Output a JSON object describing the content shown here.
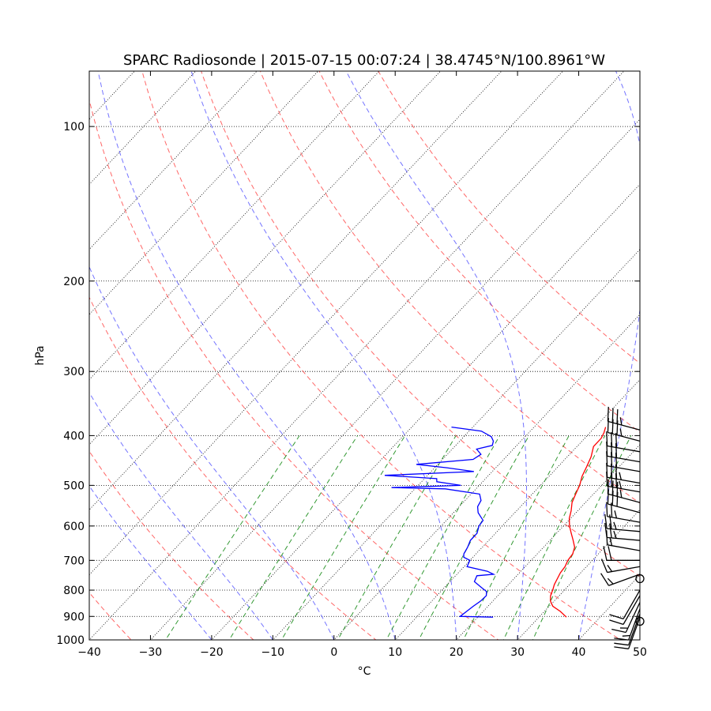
{
  "chart_data": {
    "type": "skew-t",
    "title": "SPARC Radiosonde | 2015-07-15 00:07:24 | 38.4745°N/100.8961°W",
    "xlabel": "°C",
    "ylabel": "hPa",
    "xlim": [
      -40,
      50
    ],
    "ylim": [
      1000,
      78
    ],
    "x_ticks": [
      -40,
      -30,
      -20,
      -10,
      0,
      10,
      20,
      30,
      40,
      50
    ],
    "x_tick_labels": [
      "−40",
      "−30",
      "−20",
      "−10",
      "0",
      "10",
      "20",
      "30",
      "40",
      "50"
    ],
    "y_ticks": [
      100,
      200,
      300,
      400,
      500,
      600,
      700,
      800,
      900,
      1000
    ],
    "y_tick_labels": [
      "100",
      "200",
      "300",
      "400",
      "500",
      "600",
      "700",
      "800",
      "900",
      "1000"
    ],
    "temperature": {
      "name": "Temperature",
      "color": "#ff0000",
      "points": [
        [
          903,
          34.5
        ],
        [
          880,
          32.6
        ],
        [
          860,
          30.6
        ],
        [
          840,
          29.4
        ],
        [
          820,
          28.6
        ],
        [
          800,
          28.1
        ],
        [
          780,
          27.5
        ],
        [
          760,
          27.1
        ],
        [
          740,
          26.7
        ],
        [
          720,
          26.5
        ],
        [
          700,
          26.0
        ],
        [
          680,
          25.8
        ],
        [
          660,
          25.1
        ],
        [
          640,
          23.8
        ],
        [
          620,
          22.4
        ],
        [
          600,
          21.0
        ],
        [
          580,
          19.8
        ],
        [
          560,
          18.9
        ],
        [
          540,
          17.8
        ],
        [
          520,
          17.1
        ],
        [
          500,
          16.4
        ],
        [
          480,
          15.4
        ],
        [
          460,
          14.7
        ],
        [
          440,
          13.9
        ],
        [
          420,
          12.7
        ],
        [
          405,
          12.7
        ],
        [
          395,
          12.3
        ],
        [
          385,
          11.7
        ]
      ]
    },
    "dewpoint": {
      "name": "Dewpoint",
      "color": "#0000ff",
      "points": [
        [
          903,
          22.5
        ],
        [
          900,
          17.0
        ],
        [
          880,
          17.3
        ],
        [
          860,
          17.6
        ],
        [
          840,
          18.0
        ],
        [
          820,
          18.1
        ],
        [
          805,
          17.5
        ],
        [
          790,
          16.0
        ],
        [
          770,
          14.0
        ],
        [
          750,
          13.5
        ],
        [
          745,
          16.0
        ],
        [
          735,
          14.5
        ],
        [
          720,
          10.5
        ],
        [
          700,
          10.0
        ],
        [
          690,
          8.5
        ],
        [
          680,
          8.0
        ],
        [
          660,
          7.6
        ],
        [
          640,
          7.0
        ],
        [
          620,
          7.0
        ],
        [
          600,
          6.2
        ],
        [
          585,
          6.0
        ],
        [
          575,
          5.0
        ],
        [
          565,
          4.0
        ],
        [
          550,
          3.0
        ],
        [
          535,
          2.6
        ],
        [
          520,
          1.4
        ],
        [
          508,
          -5.0
        ],
        [
          505,
          -14.0
        ],
        [
          500,
          -3.0
        ],
        [
          492,
          -7.5
        ],
        [
          485,
          -8.0
        ],
        [
          478,
          -17.0
        ],
        [
          470,
          -3.0
        ],
        [
          462,
          -8.0
        ],
        [
          455,
          -13.5
        ],
        [
          445,
          -5.0
        ],
        [
          435,
          -4.5
        ],
        [
          425,
          -6.0
        ],
        [
          418,
          -4.0
        ],
        [
          410,
          -4.5
        ],
        [
          402,
          -5.5
        ],
        [
          392,
          -8.0
        ],
        [
          385,
          -13.5
        ]
      ]
    },
    "dry_adiabats_K": [
      240,
      260,
      280,
      300,
      320,
      340,
      360,
      380,
      400
    ],
    "moist_adiabats_C": [
      -20,
      -10,
      0,
      10,
      20,
      30,
      40,
      50
    ],
    "mixing_ratio_lines_gkg": [
      0.4,
      1,
      2,
      4,
      7,
      10,
      16,
      24,
      32
    ],
    "isotherm_spacing_C": 10,
    "wind_barbs": {
      "color": "#000000",
      "levels": [
        {
          "p": 920,
          "speed_kt": 0,
          "dir": 0
        },
        {
          "p": 905,
          "speed_kt": 10,
          "dir": 200
        },
        {
          "p": 890,
          "speed_kt": 10,
          "dir": 200
        },
        {
          "p": 870,
          "speed_kt": 15,
          "dir": 200
        },
        {
          "p": 845,
          "speed_kt": 15,
          "dir": 205
        },
        {
          "p": 820,
          "speed_kt": 10,
          "dir": 210
        },
        {
          "p": 800,
          "speed_kt": 10,
          "dir": 210
        },
        {
          "p": 760,
          "speed_kt": 0,
          "dir": 0
        },
        {
          "p": 745,
          "speed_kt": 15,
          "dir": 250
        },
        {
          "p": 720,
          "speed_kt": 15,
          "dir": 260
        },
        {
          "p": 700,
          "speed_kt": 20,
          "dir": 270
        },
        {
          "p": 670,
          "speed_kt": 15,
          "dir": 280
        },
        {
          "p": 640,
          "speed_kt": 25,
          "dir": 275
        },
        {
          "p": 615,
          "speed_kt": 25,
          "dir": 275
        },
        {
          "p": 590,
          "speed_kt": 25,
          "dir": 280
        },
        {
          "p": 565,
          "speed_kt": 30,
          "dir": 285
        },
        {
          "p": 540,
          "speed_kt": 35,
          "dir": 285
        },
        {
          "p": 515,
          "speed_kt": 35,
          "dir": 280
        },
        {
          "p": 495,
          "speed_kt": 35,
          "dir": 280
        },
        {
          "p": 470,
          "speed_kt": 30,
          "dir": 280
        },
        {
          "p": 450,
          "speed_kt": 30,
          "dir": 280
        },
        {
          "p": 430,
          "speed_kt": 30,
          "dir": 280
        },
        {
          "p": 410,
          "speed_kt": 35,
          "dir": 285
        },
        {
          "p": 390,
          "speed_kt": 35,
          "dir": 285
        }
      ]
    }
  }
}
